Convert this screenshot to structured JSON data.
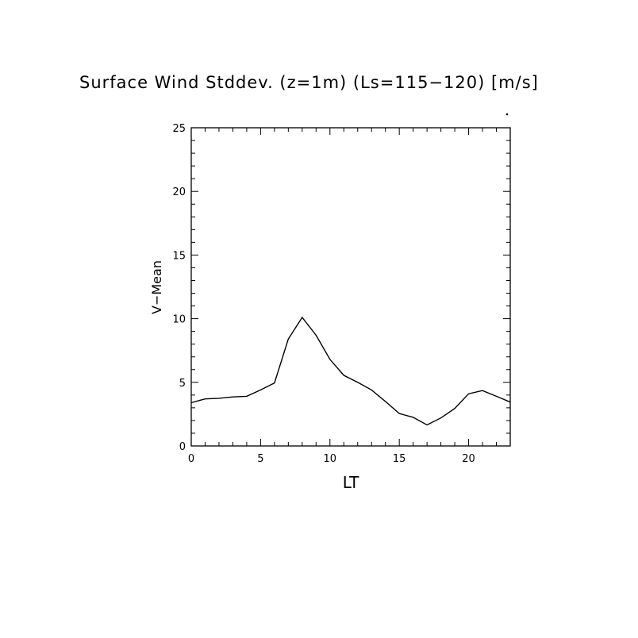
{
  "chart_data": {
    "type": "line",
    "title": "Surface Wind Stddev. (z=1m) (Ls=115−120) [m/s]",
    "xlabel": "LT",
    "ylabel": "V−Mean",
    "xlim": [
      0,
      23
    ],
    "ylim": [
      0,
      25
    ],
    "x_ticks": [
      0,
      5,
      10,
      15,
      20
    ],
    "y_ticks": [
      0,
      5,
      10,
      15,
      20,
      25
    ],
    "grid": false,
    "series": [
      {
        "x": [
          0,
          1,
          2,
          3,
          4,
          5,
          6,
          7,
          8,
          9,
          10,
          11,
          12,
          13,
          14,
          15,
          16,
          17,
          18,
          19,
          20,
          21,
          22,
          23
        ],
        "values": [
          3.4,
          3.7,
          3.75,
          3.85,
          3.9,
          4.4,
          4.95,
          8.4,
          10.1,
          8.7,
          6.8,
          5.55,
          5.0,
          4.4,
          3.5,
          2.55,
          2.25,
          1.65,
          2.2,
          2.95,
          4.1,
          4.35,
          3.9,
          3.45
        ],
        "color": "#000000"
      }
    ]
  }
}
